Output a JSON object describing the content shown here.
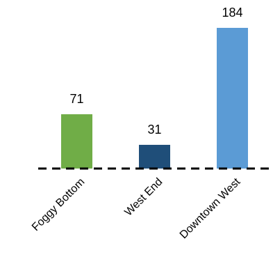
{
  "chart_data": {
    "type": "bar",
    "categories": [
      "Foggy Bottom",
      "West End",
      "Downtown West"
    ],
    "values": [
      71,
      31,
      184
    ],
    "data_labels": [
      "71",
      "31",
      "184"
    ],
    "colors": [
      "#70ad47",
      "#1f4e79",
      "#5b9bd5"
    ],
    "ylim": [
      0,
      184
    ],
    "baseline_style": "dashed",
    "grid": false,
    "legend": "none",
    "title": "",
    "xlabel": "",
    "ylabel": ""
  }
}
